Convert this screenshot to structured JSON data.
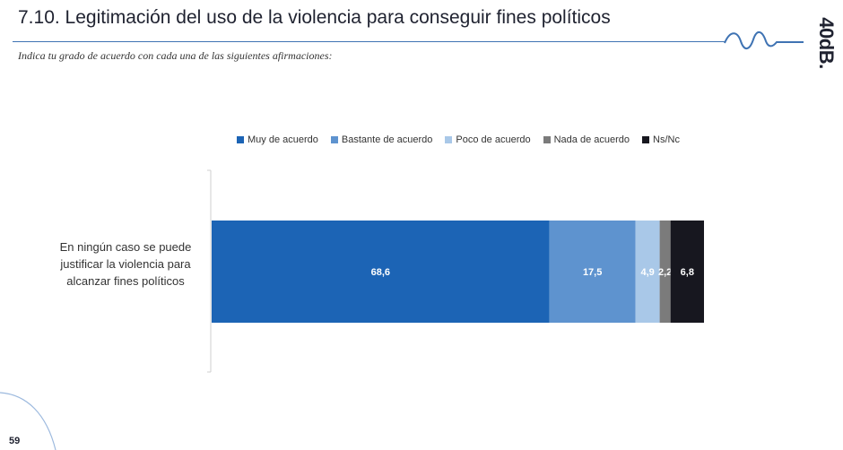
{
  "header": {
    "title": "7.10. Legitimación del uso de la violencia para conseguir fines políticos",
    "subtitle": "Indica tu grado de acuerdo con cada una de las siguientes afirmaciones:",
    "logo": "40dB."
  },
  "footer": {
    "page_number": "59"
  },
  "colors": {
    "accent": "#3f73b3",
    "muy": "#1c64b5",
    "bastante": "#5e93cf",
    "poco": "#a9c8e8",
    "nada": "#7b7b7b",
    "nsnc": "#17171f"
  },
  "chart_data": {
    "type": "bar",
    "orientation": "horizontal",
    "stacked": true,
    "categories": [
      "En ningún caso se puede justificar la violencia para alcanzar fines políticos"
    ],
    "series": [
      {
        "name": "Muy de acuerdo",
        "values": [
          68.6
        ],
        "label": "68,6",
        "color": "#1c64b5"
      },
      {
        "name": "Bastante de acuerdo",
        "values": [
          17.5
        ],
        "label": "17,5",
        "color": "#5e93cf"
      },
      {
        "name": "Poco de acuerdo",
        "values": [
          4.9
        ],
        "label": "4,9",
        "color": "#a9c8e8"
      },
      {
        "name": "Nada de acuerdo",
        "values": [
          2.2
        ],
        "label": "2,2",
        "color": "#7b7b7b"
      },
      {
        "name": "Ns/Nc",
        "values": [
          6.8
        ],
        "label": "6,8",
        "color": "#17171f"
      }
    ],
    "xlim": [
      0,
      100
    ],
    "grid": false,
    "legend": "top"
  }
}
